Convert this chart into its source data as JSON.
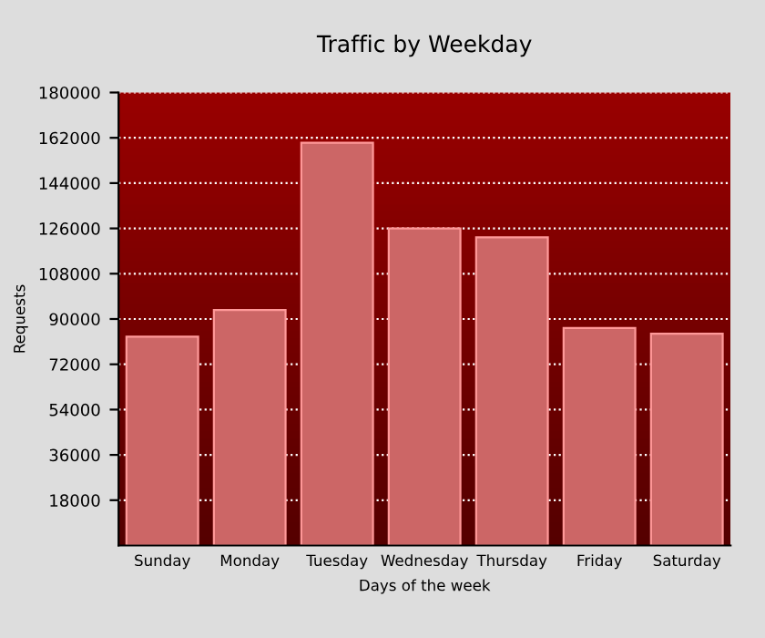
{
  "chart_data": {
    "type": "bar",
    "title": "Traffic by Weekday",
    "xlabel": "Days of the week",
    "ylabel": "Requests",
    "categories": [
      "Sunday",
      "Monday",
      "Tuesday",
      "Wednesday",
      "Thursday",
      "Friday",
      "Saturday"
    ],
    "values": [
      83000,
      93600,
      160000,
      126000,
      122500,
      86400,
      84200
    ],
    "color": "#cc6666",
    "ylim": [
      0,
      180000
    ],
    "yticks": [
      18000,
      36000,
      54000,
      72000,
      90000,
      108000,
      126000,
      144000,
      162000,
      180000
    ],
    "grid": "y"
  }
}
